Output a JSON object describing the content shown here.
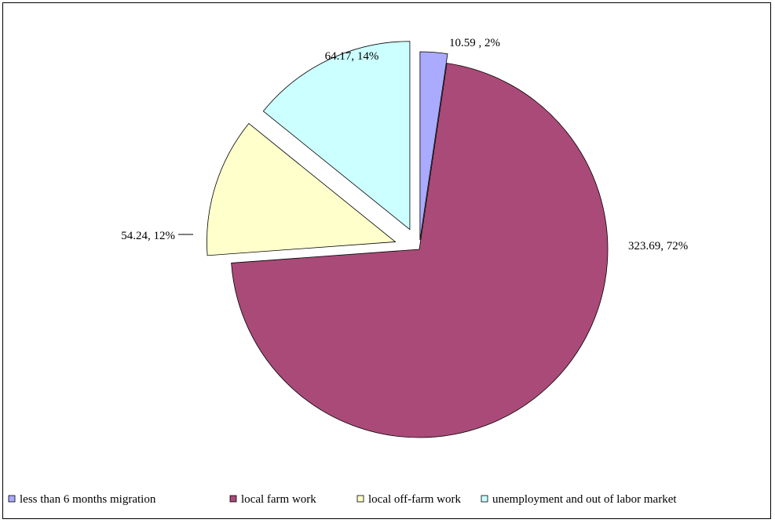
{
  "chart_data": {
    "type": "pie",
    "title": "",
    "exploded": true,
    "start_angle_deg": 0,
    "direction": "clockwise",
    "legend_position": "bottom",
    "slices": [
      {
        "name": "less than 6 months migration",
        "value": 10.59,
        "percent": 2,
        "label": "10.59 , 2%",
        "color": "#aaaaff"
      },
      {
        "name": "local farm work",
        "value": 323.69,
        "percent": 72,
        "label": "323.69, 72%",
        "color": "#aa4a78"
      },
      {
        "name": "local off-farm work",
        "value": 54.24,
        "percent": 12,
        "label": "54.24, 12%",
        "color": "#ffffcc"
      },
      {
        "name": "unemployment and out of labor market",
        "value": 64.17,
        "percent": 14,
        "label": "64.17, 14%",
        "color": "#ccffff"
      }
    ]
  }
}
